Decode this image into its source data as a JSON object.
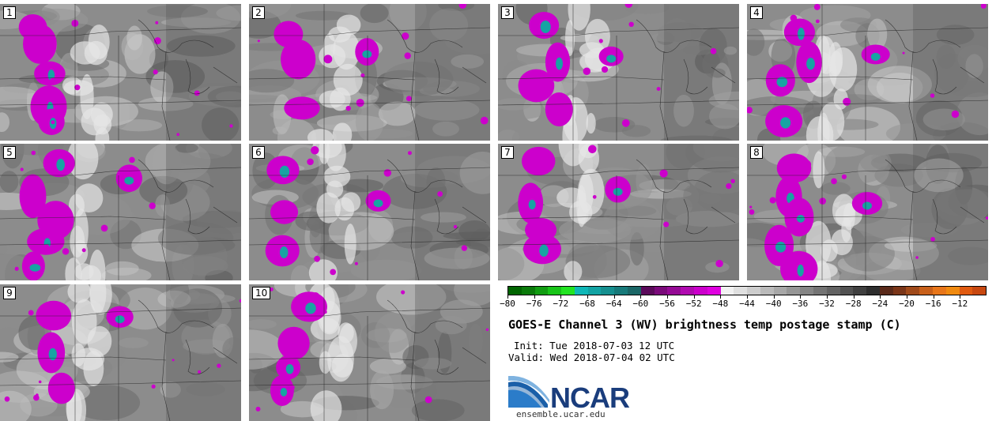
{
  "panels": [
    {
      "label": "1"
    },
    {
      "label": "2"
    },
    {
      "label": "3"
    },
    {
      "label": "4"
    },
    {
      "label": "5"
    },
    {
      "label": "6"
    },
    {
      "label": "7"
    },
    {
      "label": "8"
    },
    {
      "label": "9"
    },
    {
      "label": "10"
    }
  ],
  "colorbar": {
    "ticks": [
      "−80",
      "−76",
      "−72",
      "−68",
      "−64",
      "−60",
      "−56",
      "−52",
      "−48",
      "−44",
      "−40",
      "−36",
      "−32",
      "−28",
      "−24",
      "−20",
      "−16",
      "−12"
    ],
    "colors": [
      "#006400",
      "#0a7a0a",
      "#119c11",
      "#18c418",
      "#22e422",
      "#0fb7b7",
      "#12a3a3",
      "#158f8f",
      "#177a7a",
      "#1a6666",
      "#5a0a5a",
      "#7a0a7a",
      "#950a95",
      "#b00ab0",
      "#cc00cc",
      "#e000e0",
      "#f2f2f2",
      "#e0e0e0",
      "#cdcdcd",
      "#bababa",
      "#a8a8a8",
      "#969696",
      "#858585",
      "#747474",
      "#636363",
      "#525252",
      "#404040",
      "#2e2e2e",
      "#5a2a1a",
      "#7a3518",
      "#a04a1a",
      "#c8601a",
      "#e8761a",
      "#f08a10",
      "#e05a10",
      "#c84810"
    ]
  },
  "title": "GOES-E Channel 3 (WV) brightness temp postage stamp (C)",
  "init": "Init: Tue 2018-07-03 12 UTC",
  "valid": "Valid: Wed 2018-07-04 02 UTC",
  "logo": {
    "text": "NCAR",
    "url": "ensemble.ucar.edu"
  }
}
